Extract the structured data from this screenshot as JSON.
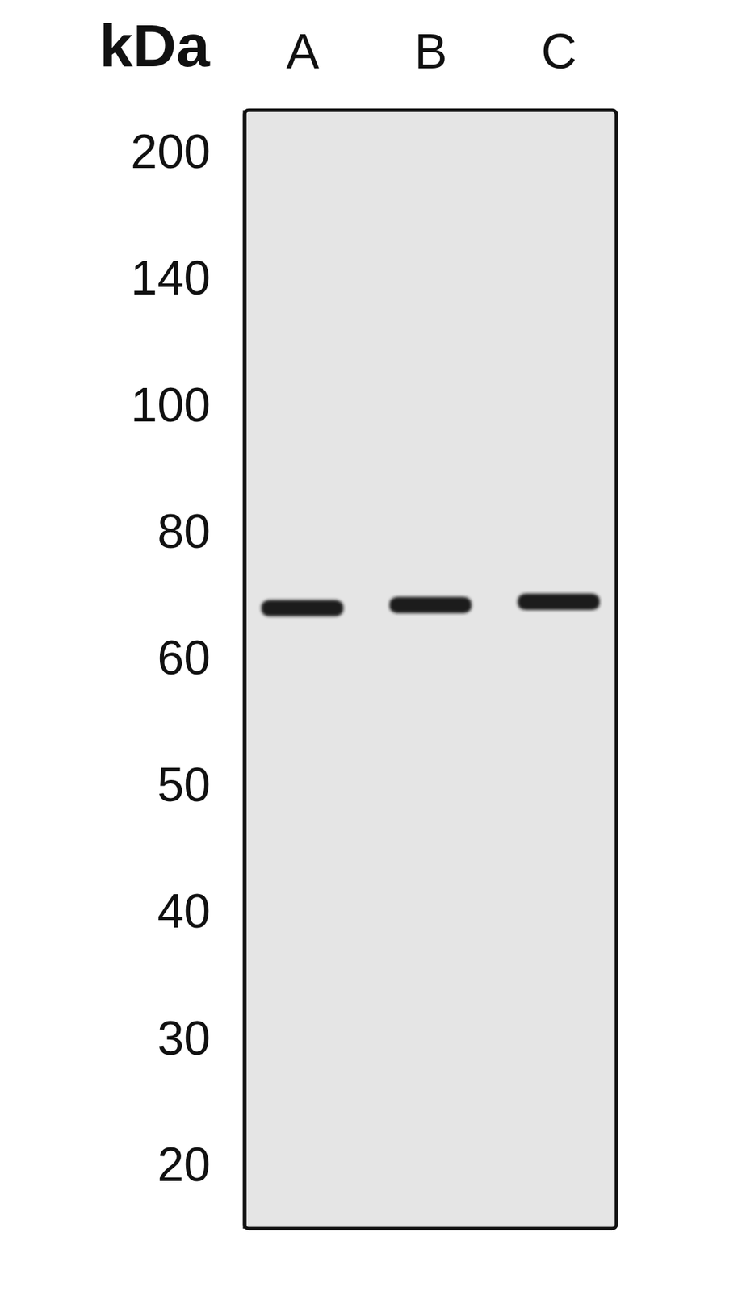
{
  "chart_data": {
    "type": "blot",
    "y_label": "kDa",
    "categories": [
      "A",
      "B",
      "C"
    ],
    "values": [
      68,
      68.5,
      69
    ],
    "color": "#1a1a1a",
    "ylim": [
      15,
      220
    ],
    "yticks": [
      200,
      140,
      100,
      80,
      60,
      50,
      40,
      30,
      20
    ]
  }
}
